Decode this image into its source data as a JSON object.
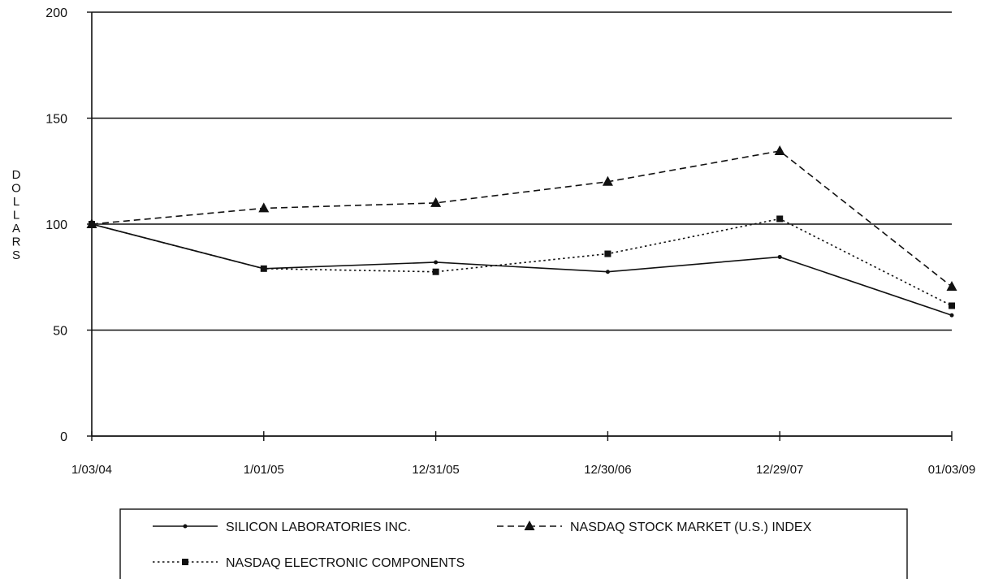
{
  "chart_data": {
    "type": "line",
    "title": "",
    "xlabel": "",
    "ylabel": "DOLLARS",
    "categories": [
      "1/03/04",
      "1/01/05",
      "12/31/05",
      "12/30/06",
      "12/29/07",
      "01/03/09"
    ],
    "ylim": [
      0,
      200
    ],
    "yticks": [
      0,
      50,
      100,
      150,
      200
    ],
    "grid": "horizontal",
    "legend_position": "bottom",
    "series": [
      {
        "name": "SILICON LABORATORIES INC.",
        "values": [
          100,
          79,
          82,
          77.5,
          84.5,
          57
        ],
        "line_style": "solid",
        "marker": "none"
      },
      {
        "name": "NASDAQ STOCK MARKET (U.S.) INDEX",
        "values": [
          100,
          107.5,
          110,
          120,
          134.5,
          70.5
        ],
        "line_style": "dashed",
        "marker": "triangle"
      },
      {
        "name": "NASDAQ ELECTRONIC COMPONENTS",
        "values": [
          100,
          79,
          77.5,
          86,
          102.5,
          61.5
        ],
        "line_style": "dotted",
        "marker": "square"
      }
    ],
    "colors": {
      "lines": "#111111",
      "grid": "#111111",
      "background": "#ffffff"
    }
  }
}
